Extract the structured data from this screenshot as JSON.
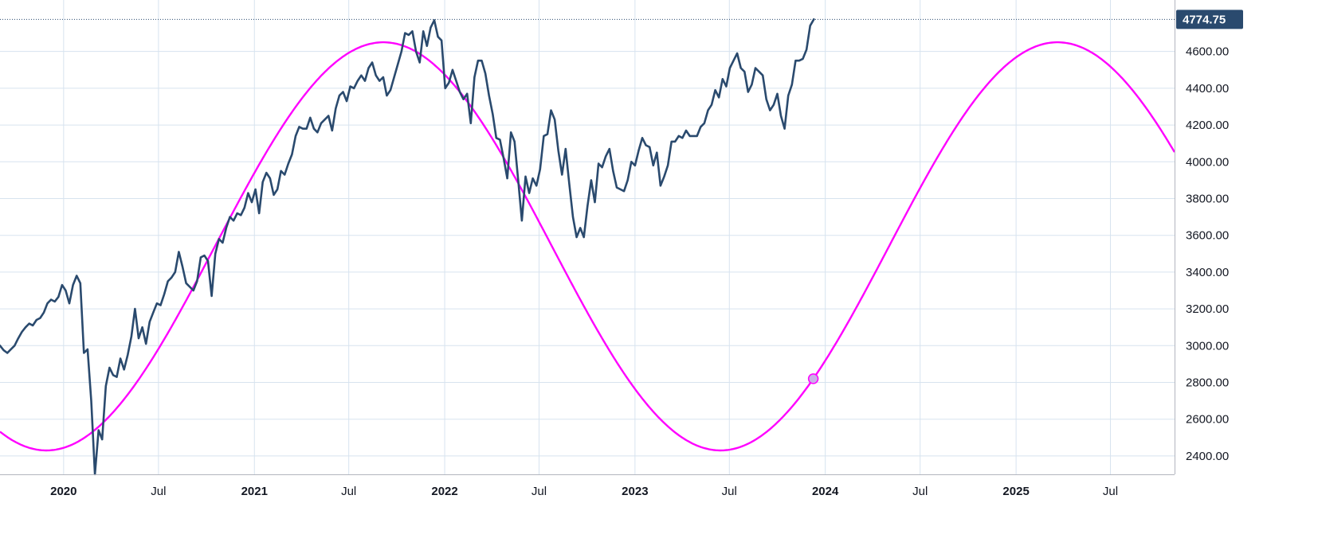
{
  "chart_data": {
    "type": "line",
    "title": "",
    "xlabel": "",
    "ylabel": "",
    "ylim": [
      2300,
      4880
    ],
    "xlim": [
      "2019-09-01",
      "2025-11-01"
    ],
    "grid": true,
    "y_ticks": [
      "2400.00",
      "2600.00",
      "2800.00",
      "3000.00",
      "3200.00",
      "3400.00",
      "3600.00",
      "3800.00",
      "4000.00",
      "4200.00",
      "4400.00",
      "4600.00"
    ],
    "x_ticks": [
      {
        "label": "2020",
        "date": "2020-01-01",
        "major": true
      },
      {
        "label": "Jul",
        "date": "2020-07-01",
        "major": false
      },
      {
        "label": "2021",
        "date": "2021-01-01",
        "major": true
      },
      {
        "label": "Jul",
        "date": "2021-07-01",
        "major": false
      },
      {
        "label": "2022",
        "date": "2022-01-01",
        "major": true
      },
      {
        "label": "Jul",
        "date": "2022-07-01",
        "major": false
      },
      {
        "label": "2023",
        "date": "2023-01-01",
        "major": true
      },
      {
        "label": "Jul",
        "date": "2023-07-01",
        "major": false
      },
      {
        "label": "2024",
        "date": "2024-01-01",
        "major": true
      },
      {
        "label": "Jul",
        "date": "2024-07-01",
        "major": false
      },
      {
        "label": "2025",
        "date": "2025-01-01",
        "major": true
      },
      {
        "label": "Jul",
        "date": "2025-07-01",
        "major": false
      }
    ],
    "last_price_label": "4774.75",
    "series": [
      {
        "kind": "price",
        "color": "#2a4a6e",
        "points": [
          [
            "2019-09-01",
            3000
          ],
          [
            "2019-09-08",
            2975
          ],
          [
            "2019-09-15",
            2960
          ],
          [
            "2019-09-22",
            2980
          ],
          [
            "2019-09-29",
            3000
          ],
          [
            "2019-10-06",
            3040
          ],
          [
            "2019-10-13",
            3075
          ],
          [
            "2019-10-20",
            3100
          ],
          [
            "2019-10-27",
            3120
          ],
          [
            "2019-11-03",
            3110
          ],
          [
            "2019-11-10",
            3140
          ],
          [
            "2019-11-17",
            3150
          ],
          [
            "2019-11-24",
            3180
          ],
          [
            "2019-12-01",
            3230
          ],
          [
            "2019-12-08",
            3250
          ],
          [
            "2019-12-15",
            3240
          ],
          [
            "2019-12-22",
            3265
          ],
          [
            "2019-12-29",
            3330
          ],
          [
            "2020-01-05",
            3300
          ],
          [
            "2020-01-12",
            3230
          ],
          [
            "2020-01-19",
            3330
          ],
          [
            "2020-01-26",
            3380
          ],
          [
            "2020-02-02",
            3340
          ],
          [
            "2020-02-09",
            2960
          ],
          [
            "2020-02-16",
            2980
          ],
          [
            "2020-02-23",
            2700
          ],
          [
            "2020-03-01",
            2300
          ],
          [
            "2020-03-08",
            2540
          ],
          [
            "2020-03-15",
            2490
          ],
          [
            "2020-03-22",
            2780
          ],
          [
            "2020-03-29",
            2880
          ],
          [
            "2020-04-05",
            2840
          ],
          [
            "2020-04-12",
            2830
          ],
          [
            "2020-04-19",
            2930
          ],
          [
            "2020-04-26",
            2870
          ],
          [
            "2020-05-03",
            2950
          ],
          [
            "2020-05-10",
            3050
          ],
          [
            "2020-05-17",
            3200
          ],
          [
            "2020-05-24",
            3040
          ],
          [
            "2020-05-31",
            3100
          ],
          [
            "2020-06-07",
            3010
          ],
          [
            "2020-06-14",
            3130
          ],
          [
            "2020-06-21",
            3180
          ],
          [
            "2020-06-28",
            3230
          ],
          [
            "2020-07-05",
            3220
          ],
          [
            "2020-07-12",
            3280
          ],
          [
            "2020-07-19",
            3350
          ],
          [
            "2020-07-26",
            3370
          ],
          [
            "2020-08-02",
            3400
          ],
          [
            "2020-08-09",
            3510
          ],
          [
            "2020-08-16",
            3430
          ],
          [
            "2020-08-23",
            3340
          ],
          [
            "2020-08-30",
            3320
          ],
          [
            "2020-09-06",
            3300
          ],
          [
            "2020-09-13",
            3350
          ],
          [
            "2020-09-20",
            3480
          ],
          [
            "2020-09-27",
            3490
          ],
          [
            "2020-10-04",
            3460
          ],
          [
            "2020-10-11",
            3270
          ],
          [
            "2020-10-18",
            3500
          ],
          [
            "2020-10-25",
            3580
          ],
          [
            "2020-11-01",
            3560
          ],
          [
            "2020-11-08",
            3640
          ],
          [
            "2020-11-15",
            3700
          ],
          [
            "2020-11-22",
            3680
          ],
          [
            "2020-11-29",
            3720
          ],
          [
            "2020-12-06",
            3710
          ],
          [
            "2020-12-13",
            3750
          ],
          [
            "2020-12-20",
            3830
          ],
          [
            "2020-12-27",
            3780
          ],
          [
            "2021-01-03",
            3850
          ],
          [
            "2021-01-10",
            3720
          ],
          [
            "2021-01-17",
            3890
          ],
          [
            "2021-01-24",
            3940
          ],
          [
            "2021-01-31",
            3910
          ],
          [
            "2021-02-07",
            3820
          ],
          [
            "2021-02-14",
            3850
          ],
          [
            "2021-02-21",
            3950
          ],
          [
            "2021-02-28",
            3930
          ],
          [
            "2021-03-07",
            3990
          ],
          [
            "2021-03-14",
            4040
          ],
          [
            "2021-03-21",
            4140
          ],
          [
            "2021-03-28",
            4190
          ],
          [
            "2021-04-04",
            4180
          ],
          [
            "2021-04-11",
            4180
          ],
          [
            "2021-04-18",
            4240
          ],
          [
            "2021-04-25",
            4180
          ],
          [
            "2021-05-02",
            4160
          ],
          [
            "2021-05-09",
            4210
          ],
          [
            "2021-05-16",
            4230
          ],
          [
            "2021-05-23",
            4250
          ],
          [
            "2021-05-30",
            4170
          ],
          [
            "2021-06-06",
            4290
          ],
          [
            "2021-06-13",
            4360
          ],
          [
            "2021-06-20",
            4380
          ],
          [
            "2021-06-27",
            4330
          ],
          [
            "2021-07-04",
            4410
          ],
          [
            "2021-07-11",
            4400
          ],
          [
            "2021-07-18",
            4440
          ],
          [
            "2021-07-25",
            4470
          ],
          [
            "2021-08-01",
            4440
          ],
          [
            "2021-08-08",
            4510
          ],
          [
            "2021-08-15",
            4540
          ],
          [
            "2021-08-22",
            4470
          ],
          [
            "2021-08-29",
            4440
          ],
          [
            "2021-09-05",
            4460
          ],
          [
            "2021-09-12",
            4360
          ],
          [
            "2021-09-19",
            4390
          ],
          [
            "2021-09-26",
            4460
          ],
          [
            "2021-10-03",
            4530
          ],
          [
            "2021-10-10",
            4600
          ],
          [
            "2021-10-17",
            4700
          ],
          [
            "2021-10-24",
            4690
          ],
          [
            "2021-10-31",
            4710
          ],
          [
            "2021-11-07",
            4600
          ],
          [
            "2021-11-14",
            4540
          ],
          [
            "2021-11-21",
            4710
          ],
          [
            "2021-11-28",
            4630
          ],
          [
            "2021-12-05",
            4730
          ],
          [
            "2021-12-12",
            4770
          ],
          [
            "2021-12-19",
            4680
          ],
          [
            "2021-12-26",
            4660
          ],
          [
            "2022-01-02",
            4400
          ],
          [
            "2022-01-09",
            4430
          ],
          [
            "2022-01-16",
            4500
          ],
          [
            "2022-01-23",
            4440
          ],
          [
            "2022-01-30",
            4380
          ],
          [
            "2022-02-06",
            4340
          ],
          [
            "2022-02-13",
            4370
          ],
          [
            "2022-02-20",
            4210
          ],
          [
            "2022-02-27",
            4460
          ],
          [
            "2022-03-06",
            4550
          ],
          [
            "2022-03-13",
            4550
          ],
          [
            "2022-03-20",
            4480
          ],
          [
            "2022-03-27",
            4360
          ],
          [
            "2022-04-03",
            4260
          ],
          [
            "2022-04-10",
            4130
          ],
          [
            "2022-04-17",
            4120
          ],
          [
            "2022-04-24",
            4020
          ],
          [
            "2022-05-01",
            3910
          ],
          [
            "2022-05-08",
            4160
          ],
          [
            "2022-05-15",
            4110
          ],
          [
            "2022-05-22",
            3900
          ],
          [
            "2022-05-29",
            3680
          ],
          [
            "2022-06-05",
            3920
          ],
          [
            "2022-06-12",
            3830
          ],
          [
            "2022-06-19",
            3910
          ],
          [
            "2022-06-26",
            3870
          ],
          [
            "2022-07-03",
            3960
          ],
          [
            "2022-07-10",
            4140
          ],
          [
            "2022-07-17",
            4150
          ],
          [
            "2022-07-24",
            4280
          ],
          [
            "2022-07-31",
            4230
          ],
          [
            "2022-08-07",
            4060
          ],
          [
            "2022-08-14",
            3930
          ],
          [
            "2022-08-21",
            4070
          ],
          [
            "2022-08-28",
            3880
          ],
          [
            "2022-09-04",
            3700
          ],
          [
            "2022-09-11",
            3590
          ],
          [
            "2022-09-18",
            3640
          ],
          [
            "2022-09-25",
            3590
          ],
          [
            "2022-10-02",
            3760
          ],
          [
            "2022-10-09",
            3900
          ],
          [
            "2022-10-16",
            3780
          ],
          [
            "2022-10-23",
            3990
          ],
          [
            "2022-10-30",
            3970
          ],
          [
            "2022-11-06",
            4030
          ],
          [
            "2022-11-13",
            4070
          ],
          [
            "2022-11-20",
            3950
          ],
          [
            "2022-11-27",
            3860
          ],
          [
            "2022-12-04",
            3850
          ],
          [
            "2022-12-11",
            3840
          ],
          [
            "2022-12-18",
            3900
          ],
          [
            "2022-12-25",
            4000
          ],
          [
            "2023-01-01",
            3980
          ],
          [
            "2023-01-08",
            4060
          ],
          [
            "2023-01-15",
            4130
          ],
          [
            "2023-01-22",
            4090
          ],
          [
            "2023-01-29",
            4080
          ],
          [
            "2023-02-05",
            3980
          ],
          [
            "2023-02-12",
            4050
          ],
          [
            "2023-02-19",
            3870
          ],
          [
            "2023-02-26",
            3920
          ],
          [
            "2023-03-05",
            3980
          ],
          [
            "2023-03-12",
            4110
          ],
          [
            "2023-03-19",
            4110
          ],
          [
            "2023-03-26",
            4140
          ],
          [
            "2023-04-02",
            4130
          ],
          [
            "2023-04-09",
            4170
          ],
          [
            "2023-04-16",
            4140
          ],
          [
            "2023-04-23",
            4140
          ],
          [
            "2023-04-30",
            4140
          ],
          [
            "2023-05-07",
            4190
          ],
          [
            "2023-05-14",
            4210
          ],
          [
            "2023-05-21",
            4280
          ],
          [
            "2023-05-28",
            4310
          ],
          [
            "2023-06-04",
            4390
          ],
          [
            "2023-06-11",
            4350
          ],
          [
            "2023-06-18",
            4450
          ],
          [
            "2023-06-25",
            4410
          ],
          [
            "2023-07-02",
            4510
          ],
          [
            "2023-07-09",
            4550
          ],
          [
            "2023-07-16",
            4590
          ],
          [
            "2023-07-23",
            4510
          ],
          [
            "2023-07-30",
            4490
          ],
          [
            "2023-08-06",
            4380
          ],
          [
            "2023-08-13",
            4420
          ],
          [
            "2023-08-20",
            4510
          ],
          [
            "2023-08-27",
            4490
          ],
          [
            "2023-09-03",
            4470
          ],
          [
            "2023-09-10",
            4340
          ],
          [
            "2023-09-17",
            4280
          ],
          [
            "2023-09-24",
            4310
          ],
          [
            "2023-10-01",
            4370
          ],
          [
            "2023-10-08",
            4250
          ],
          [
            "2023-10-15",
            4180
          ],
          [
            "2023-10-22",
            4360
          ],
          [
            "2023-10-29",
            4420
          ],
          [
            "2023-11-05",
            4550
          ],
          [
            "2023-11-12",
            4550
          ],
          [
            "2023-11-19",
            4560
          ],
          [
            "2023-11-26",
            4610
          ],
          [
            "2023-12-03",
            4740
          ],
          [
            "2023-12-10",
            4774.75
          ]
        ]
      },
      {
        "kind": "cycle",
        "color": "#ff00ff",
        "min": 2430,
        "max": 4650,
        "first_trough": "2019-11-29",
        "period_days": 1293,
        "marker_date": "2023-12-09",
        "marker_fill": "#c9b1e8",
        "marker_stroke": "#ff00ff"
      }
    ],
    "colors": {
      "price": "#2a4a6e",
      "cycle": "#ff00ff",
      "label_bg": "#2a4a6e",
      "grid": "#d7e3ef"
    }
  }
}
